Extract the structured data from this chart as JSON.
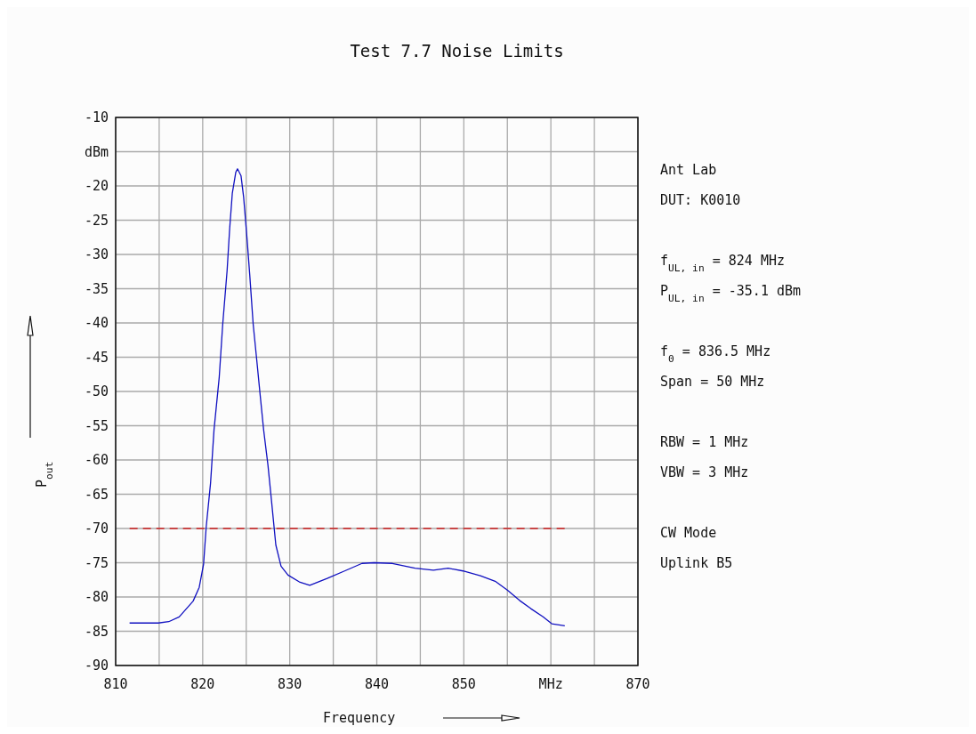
{
  "chart_data": {
    "type": "line",
    "title": "Test 7.7 Noise Limits",
    "xlabel": "Frequency",
    "ylabel": "P$_{out}$",
    "xlim": [
      810,
      870
    ],
    "xticks": [
      810,
      {
        "value": 815,
        "label": null
      },
      820,
      {
        "value": 825,
        "label": null
      },
      830,
      {
        "value": 835,
        "label": null
      },
      840,
      {
        "value": 845,
        "label": null
      },
      850,
      {
        "value": 855,
        "label": null
      },
      {
        "value": 860,
        "label": "MHz"
      },
      {
        "value": 865,
        "label": null
      },
      870
    ],
    "ylim": [
      -90,
      -10
    ],
    "yticks": [
      -90,
      -85,
      -80,
      -75,
      -70,
      -65,
      -60,
      -55,
      -50,
      -45,
      -40,
      -35,
      -30,
      -25,
      -20,
      {
        "value": -15,
        "label": "dBm"
      },
      -10
    ],
    "grid": true,
    "marker": "none",
    "line_style": "solid",
    "series": [
      {
        "color": "#1010c0",
        "x": [
          811.6,
          814.9,
          816.1,
          817.3,
          818.9,
          819.6,
          820.1,
          820.4,
          820.9,
          821.3,
          821.9,
          822.3,
          822.8,
          823.1,
          823.4,
          823.8,
          824.0,
          824.4,
          824.7,
          825.1,
          825.4,
          825.8,
          826.2,
          826.6,
          827.0,
          827.5,
          827.9,
          828.2,
          828.4,
          829.0,
          829.8,
          831.1,
          832.3,
          834.3,
          836.3,
          838.3,
          839.7,
          841.8,
          844.4,
          846.5,
          848.2,
          849.9,
          851.9,
          853.6,
          855.0,
          856.4,
          857.7,
          859.1,
          860.1,
          861.6
        ],
        "values": [
          -83.8,
          -83.8,
          -83.6,
          -82.9,
          -80.6,
          -78.6,
          -75.2,
          -69.8,
          -63.4,
          -55.6,
          -47.9,
          -40.2,
          -32.4,
          -26.2,
          -21.1,
          -18.0,
          -17.5,
          -18.5,
          -21.6,
          -27.8,
          -32.9,
          -40.2,
          -45.3,
          -50.5,
          -55.6,
          -60.8,
          -65.9,
          -69.8,
          -72.4,
          -75.5,
          -76.8,
          -77.8,
          -78.3,
          -77.3,
          -76.2,
          -75.1,
          -75.0,
          -75.1,
          -75.8,
          -76.1,
          -75.8,
          -76.2,
          -76.9,
          -77.7,
          -79.0,
          -80.5,
          -81.7,
          -82.9,
          -83.9,
          -84.2
        ]
      }
    ],
    "ref_lines": [
      {
        "axis": "y",
        "value": -70,
        "color": "#cc2020",
        "line_style": "dashed"
      }
    ],
    "annotations": [
      "Ant Lab",
      "DUT: K0010",
      "f$_{UL, in}$ = 824 MHz",
      "P$_{UL, in}$ = -35.1 dBm",
      "f$_{0}$ = 836.5 MHz",
      "Span = 50 MHz",
      "RBW = 1 MHz",
      "VBW = 3 MHz",
      "CW Mode",
      "Uplink B5"
    ]
  }
}
